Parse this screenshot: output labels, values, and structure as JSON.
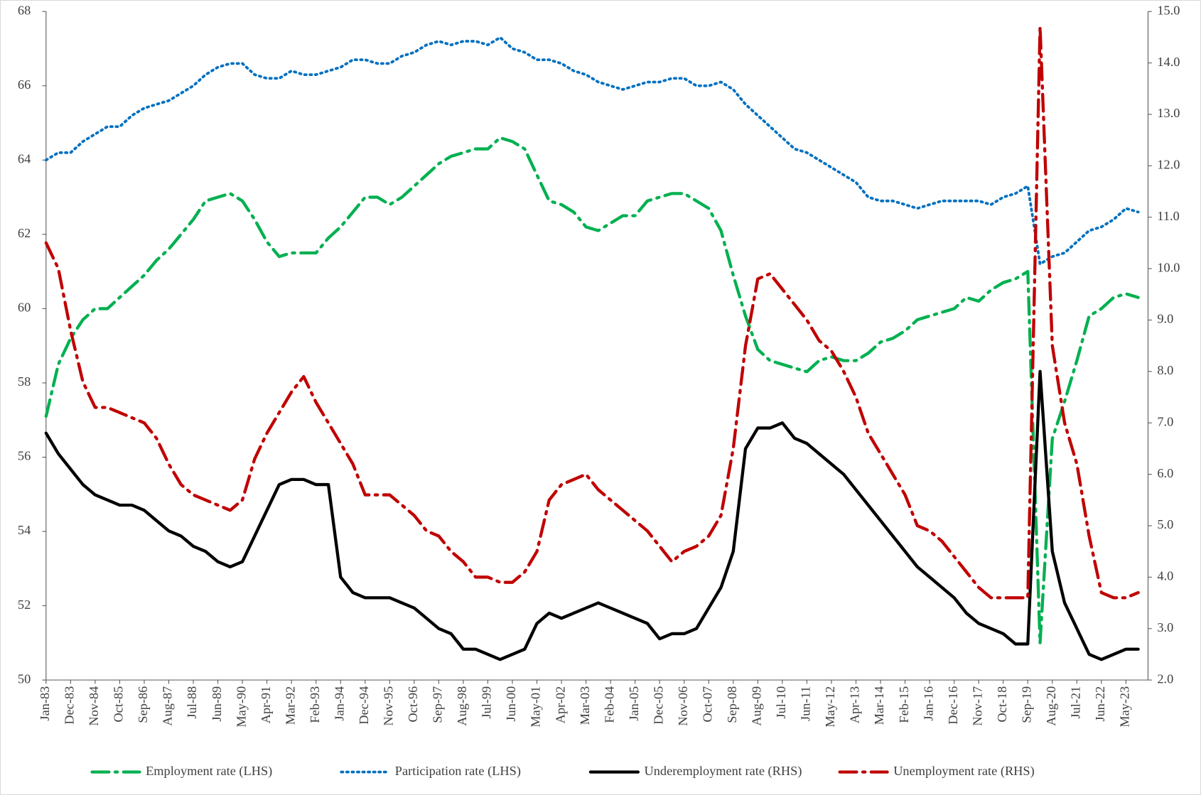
{
  "chart_data": {
    "type": "line",
    "categories": [
      "Jan-83",
      null,
      "Dec-83",
      null,
      "Nov-84",
      null,
      "Oct-85",
      null,
      "Sep-86",
      null,
      "Aug-87",
      null,
      "Jul-88",
      null,
      "Jun-89",
      null,
      "May-90",
      null,
      "Apr-91",
      null,
      "Mar-92",
      null,
      "Feb-93",
      null,
      "Jan-94",
      null,
      "Dec-94",
      null,
      "Nov-95",
      null,
      "Oct-96",
      null,
      "Sep-97",
      null,
      "Aug-98",
      null,
      "Jul-99",
      null,
      "Jun-00",
      null,
      "May-01",
      null,
      "Apr-02",
      null,
      "Mar-03",
      null,
      "Feb-04",
      null,
      "Jan-05",
      null,
      "Dec-05",
      null,
      "Nov-06",
      null,
      "Oct-07",
      null,
      "Sep-08",
      null,
      "Aug-09",
      null,
      "Jul-10",
      null,
      "Jun-11",
      null,
      "May-12",
      null,
      "Apr-13",
      null,
      "Mar-14",
      null,
      "Feb-15",
      null,
      "Jan-16",
      null,
      "Dec-16",
      null,
      "Nov-17",
      null,
      "Oct-18",
      null,
      "Sep-19",
      null,
      "Aug-20",
      null,
      "Jul-21",
      null,
      "Jun-22",
      null,
      "May-23",
      null
    ],
    "ylim": [
      50,
      68
    ],
    "yticks": [
      50,
      52,
      54,
      56,
      58,
      60,
      62,
      64,
      66,
      68
    ],
    "y2lim": [
      2,
      15
    ],
    "y2ticks": [
      {
        "value": 2,
        "label": "2.0"
      },
      {
        "value": 3,
        "label": "3.0"
      },
      {
        "value": 4,
        "label": "4.0"
      },
      {
        "value": 5,
        "label": "5.0"
      },
      {
        "value": 6,
        "label": "6.0"
      },
      {
        "value": 7,
        "label": "7.0"
      },
      {
        "value": 8,
        "label": "8.0"
      },
      {
        "value": 9,
        "label": "9.0"
      },
      {
        "value": 10,
        "label": "10.0"
      },
      {
        "value": 11,
        "label": "11.0"
      },
      {
        "value": 12,
        "label": "12.0"
      },
      {
        "value": 13,
        "label": "13.0"
      },
      {
        "value": 14,
        "label": "14.0"
      },
      {
        "value": 15,
        "label": "15.0"
      }
    ],
    "series": [
      {
        "name": "Employment rate (LHS)",
        "color": "#00b050",
        "dash": "dash-dot",
        "axis": "y",
        "values": [
          57.1,
          58.5,
          59.2,
          59.7,
          60.0,
          60.0,
          60.3,
          60.6,
          60.9,
          61.3,
          61.6,
          62.0,
          62.4,
          62.9,
          63.0,
          63.1,
          62.9,
          62.4,
          61.8,
          61.4,
          61.5,
          61.5,
          61.5,
          61.9,
          62.2,
          62.6,
          63.0,
          63.0,
          62.8,
          63.0,
          63.3,
          63.6,
          63.9,
          64.1,
          64.2,
          64.3,
          64.3,
          64.6,
          64.5,
          64.3,
          63.6,
          62.9,
          62.8,
          62.6,
          62.2,
          62.1,
          62.3,
          62.5,
          62.5,
          62.9,
          63.0,
          63.1,
          63.1,
          62.9,
          62.7,
          62.1,
          60.9,
          59.8,
          58.9,
          58.6,
          58.5,
          58.4,
          58.3,
          58.6,
          58.7,
          58.6,
          58.6,
          58.8,
          59.1,
          59.2,
          59.4,
          59.7,
          59.8,
          59.9,
          60.0,
          60.3,
          60.2,
          60.5,
          60.7,
          60.8,
          61.0,
          51.0,
          56.5,
          57.5,
          58.6,
          59.8,
          60.0,
          60.3,
          60.4,
          60.3
        ]
      },
      {
        "name": "Participation rate (LHS)",
        "color": "#0070c0",
        "dash": "dot",
        "axis": "y",
        "values": [
          64.0,
          64.2,
          64.2,
          64.5,
          64.7,
          64.9,
          64.9,
          65.2,
          65.4,
          65.5,
          65.6,
          65.8,
          66.0,
          66.3,
          66.5,
          66.6,
          66.6,
          66.3,
          66.2,
          66.2,
          66.4,
          66.3,
          66.3,
          66.4,
          66.5,
          66.7,
          66.7,
          66.6,
          66.6,
          66.8,
          66.9,
          67.1,
          67.2,
          67.1,
          67.2,
          67.2,
          67.1,
          67.3,
          67.0,
          66.9,
          66.7,
          66.7,
          66.6,
          66.4,
          66.3,
          66.1,
          66.0,
          65.9,
          66.0,
          66.1,
          66.1,
          66.2,
          66.2,
          66.0,
          66.0,
          66.1,
          65.9,
          65.5,
          65.2,
          64.9,
          64.6,
          64.3,
          64.2,
          64.0,
          63.8,
          63.6,
          63.4,
          63.0,
          62.9,
          62.9,
          62.8,
          62.7,
          62.8,
          62.9,
          62.9,
          62.9,
          62.9,
          62.8,
          63.0,
          63.1,
          63.3,
          61.2,
          61.4,
          61.5,
          61.8,
          62.1,
          62.2,
          62.4,
          62.7,
          62.6
        ]
      },
      {
        "name": "Underemployment rate (RHS)",
        "color": "#000000",
        "dash": "solid",
        "axis": "y2",
        "values": [
          6.8,
          6.4,
          6.1,
          5.8,
          5.6,
          5.5,
          5.4,
          5.4,
          5.3,
          5.1,
          4.9,
          4.8,
          4.6,
          4.5,
          4.3,
          4.2,
          4.3,
          4.8,
          5.3,
          5.8,
          5.9,
          5.9,
          5.8,
          5.8,
          4.0,
          3.7,
          3.6,
          3.6,
          3.6,
          3.5,
          3.4,
          3.2,
          3.0,
          2.9,
          2.6,
          2.6,
          2.5,
          2.4,
          2.5,
          2.6,
          3.1,
          3.3,
          3.2,
          3.3,
          3.4,
          3.5,
          3.4,
          3.3,
          3.2,
          3.1,
          2.8,
          2.9,
          2.9,
          3.0,
          3.4,
          3.8,
          4.5,
          6.5,
          6.9,
          6.9,
          7.0,
          6.7,
          6.6,
          6.4,
          6.2,
          6.0,
          5.7,
          5.4,
          5.1,
          4.8,
          4.5,
          4.2,
          4.0,
          3.8,
          3.6,
          3.3,
          3.1,
          3.0,
          2.9,
          2.7,
          2.7,
          8.0,
          4.5,
          3.5,
          3.0,
          2.5,
          2.4,
          2.5,
          2.6,
          2.6
        ]
      },
      {
        "name": "Unemployment rate (RHS)",
        "color": "#c00000",
        "dash": "dash-dot",
        "axis": "y2",
        "values": [
          10.5,
          10.0,
          8.8,
          7.8,
          7.3,
          7.3,
          7.2,
          7.1,
          7.0,
          6.7,
          6.2,
          5.8,
          5.6,
          5.5,
          5.4,
          5.3,
          5.5,
          6.3,
          6.8,
          7.2,
          7.6,
          7.9,
          7.4,
          7.0,
          6.6,
          6.2,
          5.6,
          5.6,
          5.6,
          5.4,
          5.2,
          4.9,
          4.8,
          4.5,
          4.3,
          4.0,
          4.0,
          3.9,
          3.9,
          4.1,
          4.5,
          5.5,
          5.8,
          5.9,
          6.0,
          5.7,
          5.5,
          5.3,
          5.1,
          4.9,
          4.6,
          4.3,
          4.5,
          4.6,
          4.8,
          5.2,
          6.5,
          8.5,
          9.8,
          9.9,
          9.6,
          9.3,
          9.0,
          8.6,
          8.4,
          8.0,
          7.5,
          6.8,
          6.4,
          6.0,
          5.6,
          5.0,
          4.9,
          4.7,
          4.4,
          4.1,
          3.8,
          3.6,
          3.6,
          3.6,
          3.6,
          14.7,
          8.5,
          7.0,
          6.2,
          4.8,
          3.7,
          3.6,
          3.6,
          3.7
        ]
      }
    ],
    "legend": "bottom"
  }
}
